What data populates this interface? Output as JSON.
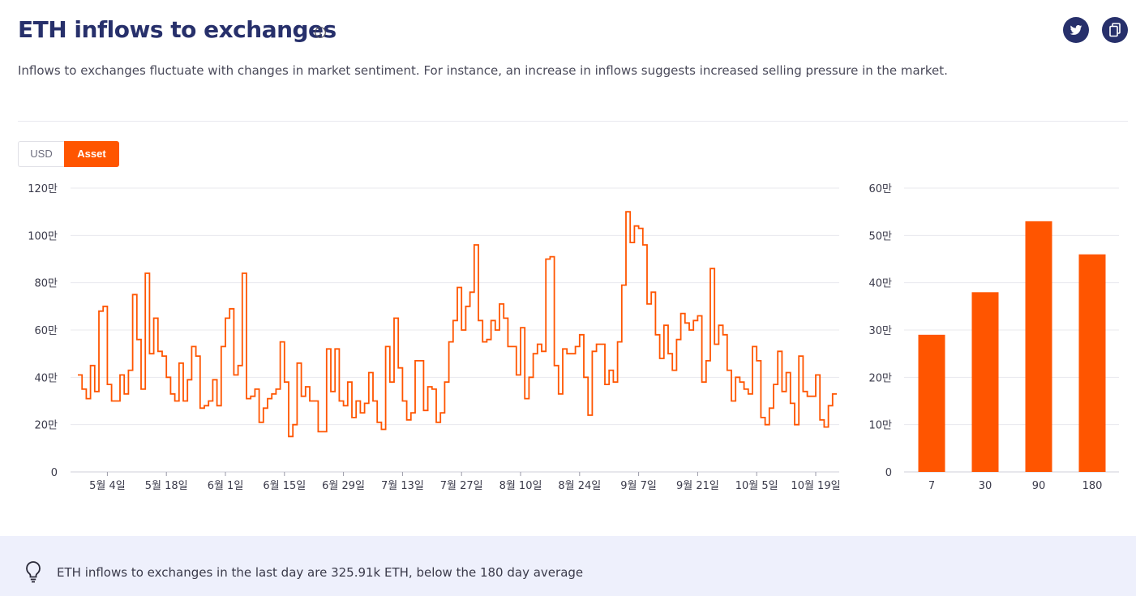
{
  "header": {
    "title": "ETH inflows to exchanges",
    "subtitle": "Inflows to exchanges fluctuate with changes in market sentiment. For instance, an increase in inflows suggests increased selling pressure in the market."
  },
  "toggle": {
    "usd_label": "USD",
    "asset_label": "Asset",
    "selected": "Asset"
  },
  "footer": {
    "insight": "ETH inflows to exchanges in the last day are 325.91k ETH, below the 180 day average"
  },
  "colors": {
    "accent": "#ff5500",
    "title": "#27306b",
    "grid": "#e8e8ee",
    "footer_bg": "#eef0fc"
  },
  "icons": [
    "info-icon",
    "twitter-icon",
    "copy-icon",
    "lightbulb-icon"
  ],
  "chart_data": [
    {
      "type": "line",
      "step": true,
      "unit": "만",
      "ylim": [
        0,
        120
      ],
      "yticks": [
        0,
        20,
        40,
        60,
        80,
        100,
        120
      ],
      "ytick_labels": [
        "0",
        "20만",
        "40만",
        "60만",
        "80만",
        "100만",
        "120만"
      ],
      "xtick_labels": [
        "5월 4일",
        "5월 18일",
        "6월 1일",
        "6월 15일",
        "6월 29일",
        "7월 13일",
        "7월 27일",
        "8월 10일",
        "8월 24일",
        "9월 7일",
        "9월 21일",
        "10월 5일",
        "10월 19일"
      ],
      "xtick_index": [
        7,
        21,
        35,
        49,
        63,
        77,
        91,
        105,
        119,
        133,
        147,
        161,
        175
      ],
      "grid": true,
      "series": [
        {
          "values": [
            41,
            35,
            31,
            45,
            34,
            68,
            70,
            37,
            30,
            30,
            41,
            33,
            43,
            75,
            56,
            35,
            84,
            50,
            65,
            51,
            49,
            40,
            33,
            30,
            46,
            30,
            39,
            53,
            49,
            27,
            28,
            30,
            39,
            28,
            53,
            65,
            69,
            41,
            45,
            84,
            31,
            32,
            35,
            21,
            27,
            31,
            33,
            35,
            55,
            38,
            15,
            20,
            46,
            32,
            36,
            30,
            30,
            17,
            17,
            52,
            34,
            52,
            30,
            28,
            38,
            23,
            30,
            25,
            29,
            42,
            30,
            21,
            18,
            53,
            38,
            65,
            44,
            30,
            22,
            25,
            47,
            47,
            26,
            36,
            35,
            21,
            25,
            38,
            55,
            64,
            78,
            60,
            70,
            76,
            96,
            64,
            55,
            56,
            64,
            60,
            71,
            65,
            53,
            53,
            41,
            61,
            31,
            40,
            50,
            54,
            51,
            90,
            91,
            45,
            33,
            52,
            50,
            50,
            53,
            58,
            40,
            24,
            51,
            54,
            54,
            37,
            43,
            38,
            55,
            79,
            110,
            97,
            104,
            103,
            96,
            71,
            76,
            58,
            48,
            62,
            50,
            43,
            56,
            67,
            63,
            60,
            64,
            66,
            38,
            47,
            86,
            54,
            62,
            58,
            43,
            30,
            40,
            38,
            35,
            33,
            53,
            47,
            23,
            20,
            27,
            37,
            51,
            34,
            42,
            29,
            20,
            49,
            34,
            32,
            32,
            41,
            22,
            19,
            28,
            33
          ]
        }
      ]
    },
    {
      "type": "bar",
      "unit": "만",
      "categories": [
        "7",
        "30",
        "90",
        "180"
      ],
      "values": [
        29,
        38,
        53,
        46
      ],
      "ylim": [
        0,
        60
      ],
      "yticks": [
        0,
        10,
        20,
        30,
        40,
        50,
        60
      ],
      "ytick_labels": [
        "0",
        "10만",
        "20만",
        "30만",
        "40만",
        "50만",
        "60만"
      ],
      "grid": true
    }
  ]
}
